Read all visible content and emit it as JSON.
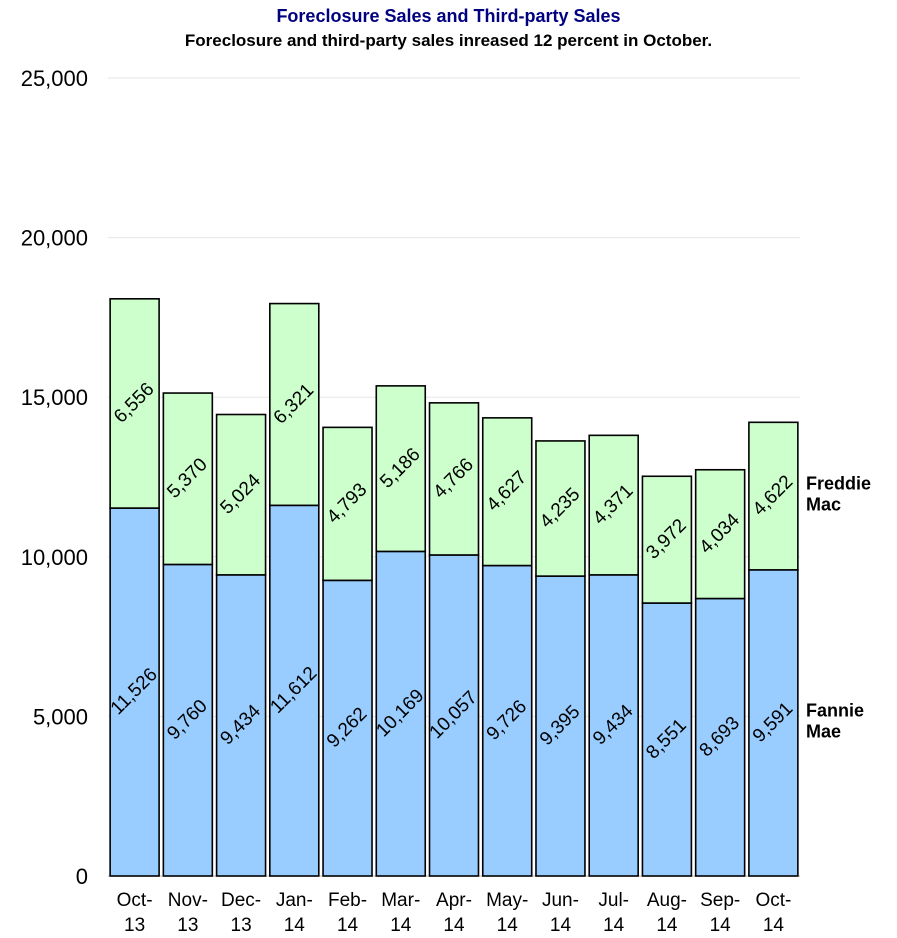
{
  "chart_data": {
    "type": "bar",
    "stacked": true,
    "title": "Foreclosure Sales and Third-party Sales",
    "subtitle": "Foreclosure and third-party sales inreased 12 percent in October.",
    "categories": [
      [
        "Oct-",
        "13"
      ],
      [
        "Nov-",
        "13"
      ],
      [
        "Dec-",
        "13"
      ],
      [
        "Jan-",
        "14"
      ],
      [
        "Feb-",
        "14"
      ],
      [
        "Mar-",
        "14"
      ],
      [
        "Apr-",
        "14"
      ],
      [
        "May-",
        "14"
      ],
      [
        "Jun-",
        "14"
      ],
      [
        "Jul-",
        "14"
      ],
      [
        "Aug-",
        "14"
      ],
      [
        "Sep-",
        "14"
      ],
      [
        "Oct-",
        "14"
      ]
    ],
    "series": [
      {
        "name": [
          "Fannie",
          "Mae"
        ],
        "color": "#99ccff",
        "values": [
          11526,
          9760,
          9434,
          11612,
          9262,
          10169,
          10057,
          9726,
          9395,
          9434,
          8551,
          8693,
          9591
        ],
        "labels": [
          "11,526",
          "9,760",
          "9,434",
          "11,612",
          "9,262",
          "10,169",
          "10,057",
          "9,726",
          "9,395",
          "9,434",
          "8,551",
          "8,693",
          "9,591"
        ]
      },
      {
        "name": [
          "Freddie",
          "Mac"
        ],
        "color": "#ccffcc",
        "values": [
          6556,
          5370,
          5024,
          6321,
          4793,
          5186,
          4766,
          4627,
          4235,
          4371,
          3972,
          4034,
          4622
        ],
        "labels": [
          "6,556",
          "5,370",
          "5,024",
          "6,321",
          "4,793",
          "5,186",
          "4,766",
          "4,627",
          "4,235",
          "4,371",
          "3,972",
          "4,034",
          "4,622"
        ]
      }
    ],
    "ylim": [
      0,
      25000
    ],
    "yticks": [
      0,
      5000,
      10000,
      15000,
      20000,
      25000
    ],
    "ytick_labels": [
      "0",
      "5,000",
      "10,000",
      "15,000",
      "20,000",
      "25,000"
    ],
    "grid": true,
    "legend": "right, inline with series"
  }
}
